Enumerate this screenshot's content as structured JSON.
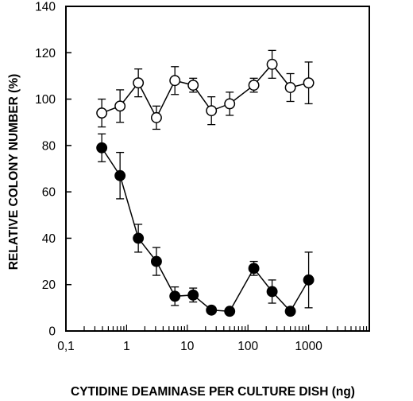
{
  "chart_data": {
    "type": "scatter",
    "title": "",
    "xlabel": "CYTIDINE DEAMINASE PER CULTURE DISH (ng)",
    "ylabel": "RELATIVE COLONY NUMBER (%)",
    "xscale": "log",
    "xlim": [
      0.1,
      10000
    ],
    "ylim": [
      0,
      140
    ],
    "x_tick_labels": [
      {
        "value": 0.1,
        "label": "0,1"
      },
      {
        "value": 1,
        "label": "1"
      },
      {
        "value": 10,
        "label": "10"
      },
      {
        "value": 100,
        "label": "100"
      },
      {
        "value": 1000,
        "label": "1000"
      }
    ],
    "y_tick_labels": [
      "0",
      "20",
      "40",
      "60",
      "80",
      "100",
      "120",
      "140"
    ],
    "grid": false,
    "legend": "none",
    "series": [
      {
        "marker": "open-circle",
        "color": "#000000",
        "x": [
          0.39,
          0.78,
          1.56,
          3.1,
          6.25,
          12.5,
          25,
          50,
          125,
          250,
          500,
          1000
        ],
        "y": [
          94,
          97,
          107,
          92,
          108,
          106,
          95,
          98,
          106,
          115,
          105,
          107
        ],
        "err": [
          6,
          7,
          6,
          5,
          6,
          3,
          6,
          5,
          3,
          6,
          6,
          9
        ]
      },
      {
        "marker": "filled-circle",
        "color": "#000000",
        "x": [
          0.39,
          0.78,
          1.56,
          3.1,
          6.25,
          12.5,
          25,
          50,
          125,
          250,
          500,
          1000
        ],
        "y": [
          79,
          67,
          40,
          30,
          15,
          15.5,
          9,
          8.5,
          27,
          17,
          8.5,
          22
        ],
        "err": [
          6,
          10,
          6,
          6,
          4,
          3,
          1,
          1,
          3,
          5,
          1,
          12
        ]
      }
    ]
  }
}
